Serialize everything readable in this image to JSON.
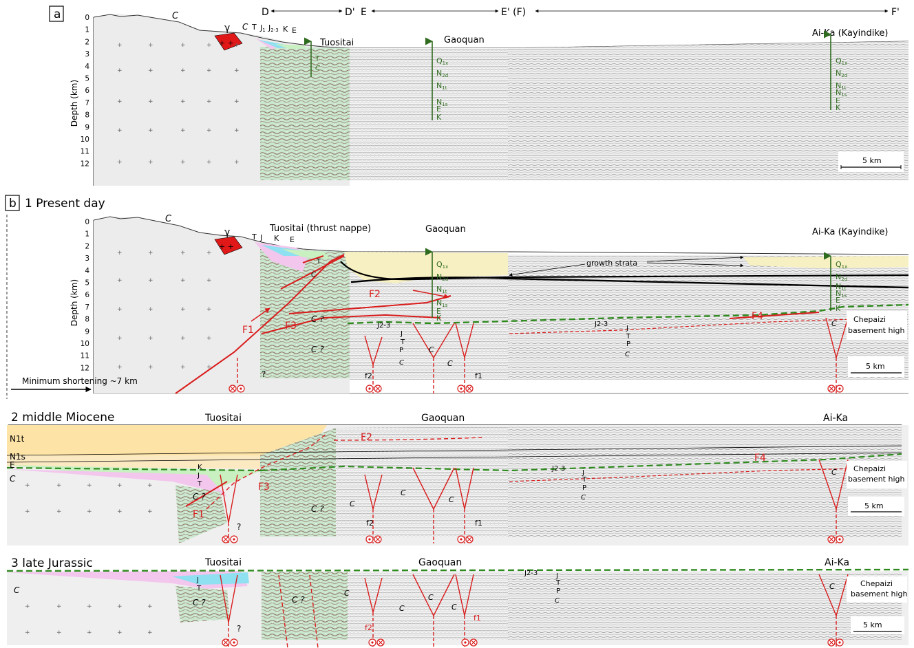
{
  "panel_a": {
    "letter": "a",
    "section_labels": [
      "D",
      "D'",
      "E",
      "E' (F)",
      "F'"
    ],
    "depth_axis_label": "Depth (km)",
    "depth_ticks": [
      "0",
      "1",
      "2",
      "3",
      "4",
      "5",
      "6",
      "7",
      "8",
      "9",
      "10",
      "11",
      "12"
    ],
    "places": {
      "tuositai": "Tuositai",
      "gaoquan": "Gaoquan",
      "aika": "Ai-Ka (Kayindike)"
    },
    "units": {
      "c": "C",
      "gamma": "γ",
      "c2": "C",
      "t": "T",
      "j1": "J",
      "j1_sub": "1",
      "j23": "J",
      "j23_sub": "2-3",
      "k": "K",
      "e": "E"
    },
    "well_units": [
      "Q1x",
      "N2d",
      "N1t",
      "N1s",
      "E",
      "K"
    ],
    "tuositai_well": [
      "T",
      "C"
    ],
    "scale": "5 km"
  },
  "panel_b1": {
    "letter": "b",
    "title": "1 Present day",
    "places": {
      "tuositai": "Tuositai (thrust nappe)",
      "gaoquan": "Gaoquan",
      "aika": "Ai-Ka (Kayindike)"
    },
    "units": {
      "c": "C",
      "gamma": "γ",
      "t": "T",
      "j": "J",
      "k": "K",
      "e": "E",
      "t_well": "T",
      "c_well": "C"
    },
    "growth_strata": "growth strata",
    "faults": {
      "f1": "F1",
      "f2": "F2",
      "f3": "F3",
      "f4": "F4",
      "f1_small": "f1",
      "f2_small": "f2"
    },
    "formations": [
      "Q1x",
      "N2d",
      "N1t",
      "N1s",
      "E",
      "K"
    ],
    "strat": {
      "j23": "J2-3",
      "j": "J",
      "t": "T",
      "p": "P",
      "c": "C",
      "cq": "C ?",
      "q": "?"
    },
    "basement_high": [
      "Chepaizi",
      "basement high"
    ],
    "shortening": "Minimum shortening ~7 km",
    "scale": "5 km"
  },
  "panel_b2": {
    "title": "2 middle Miocene",
    "places": {
      "tuositai": "Tuositai",
      "gaoquan": "Gaoquan",
      "aika": "Ai-Ka"
    },
    "units": [
      "N1t",
      "N1s",
      "E",
      "C"
    ],
    "faults": {
      "f1": "F1",
      "f2": "F2",
      "f3": "F3",
      "f4": "F4",
      "f1_small": "f1",
      "f2_small": "f2"
    },
    "strat": {
      "k": "K",
      "j": "J",
      "t": "T",
      "j23": "J2-3",
      "p": "P",
      "c": "C",
      "cq": "C ?",
      "q": "?"
    },
    "basement_high": [
      "Chepaizi",
      "basement high"
    ],
    "scale": "5 km"
  },
  "panel_b3": {
    "title": "3 late Jurassic",
    "places": {
      "tuositai": "Tuositai",
      "gaoquan": "Gaoquan",
      "aika": "Ai-Ka"
    },
    "faults": {
      "f1_small": "f1",
      "f2_small": "f2"
    },
    "strat": {
      "j": "J",
      "t": "T",
      "j23": "J2-3",
      "p": "P",
      "c": "C",
      "cq": "C ?",
      "q": "?"
    },
    "basement_high": [
      "Chepaizi",
      "basement high"
    ],
    "scale": "5 km"
  },
  "colors": {
    "fault": "#d91c1c",
    "green_horizon": "#2f8a1f",
    "well": "#2f6b1f",
    "n1t_fill": "#fde3a6",
    "growth_fill": "#f7f0c2",
    "pink": "#f3c6ee",
    "cyan": "#8fe0f0",
    "light_green": "#c8f0c0",
    "granite": "#e01818",
    "basement_grey": "#ececec"
  }
}
